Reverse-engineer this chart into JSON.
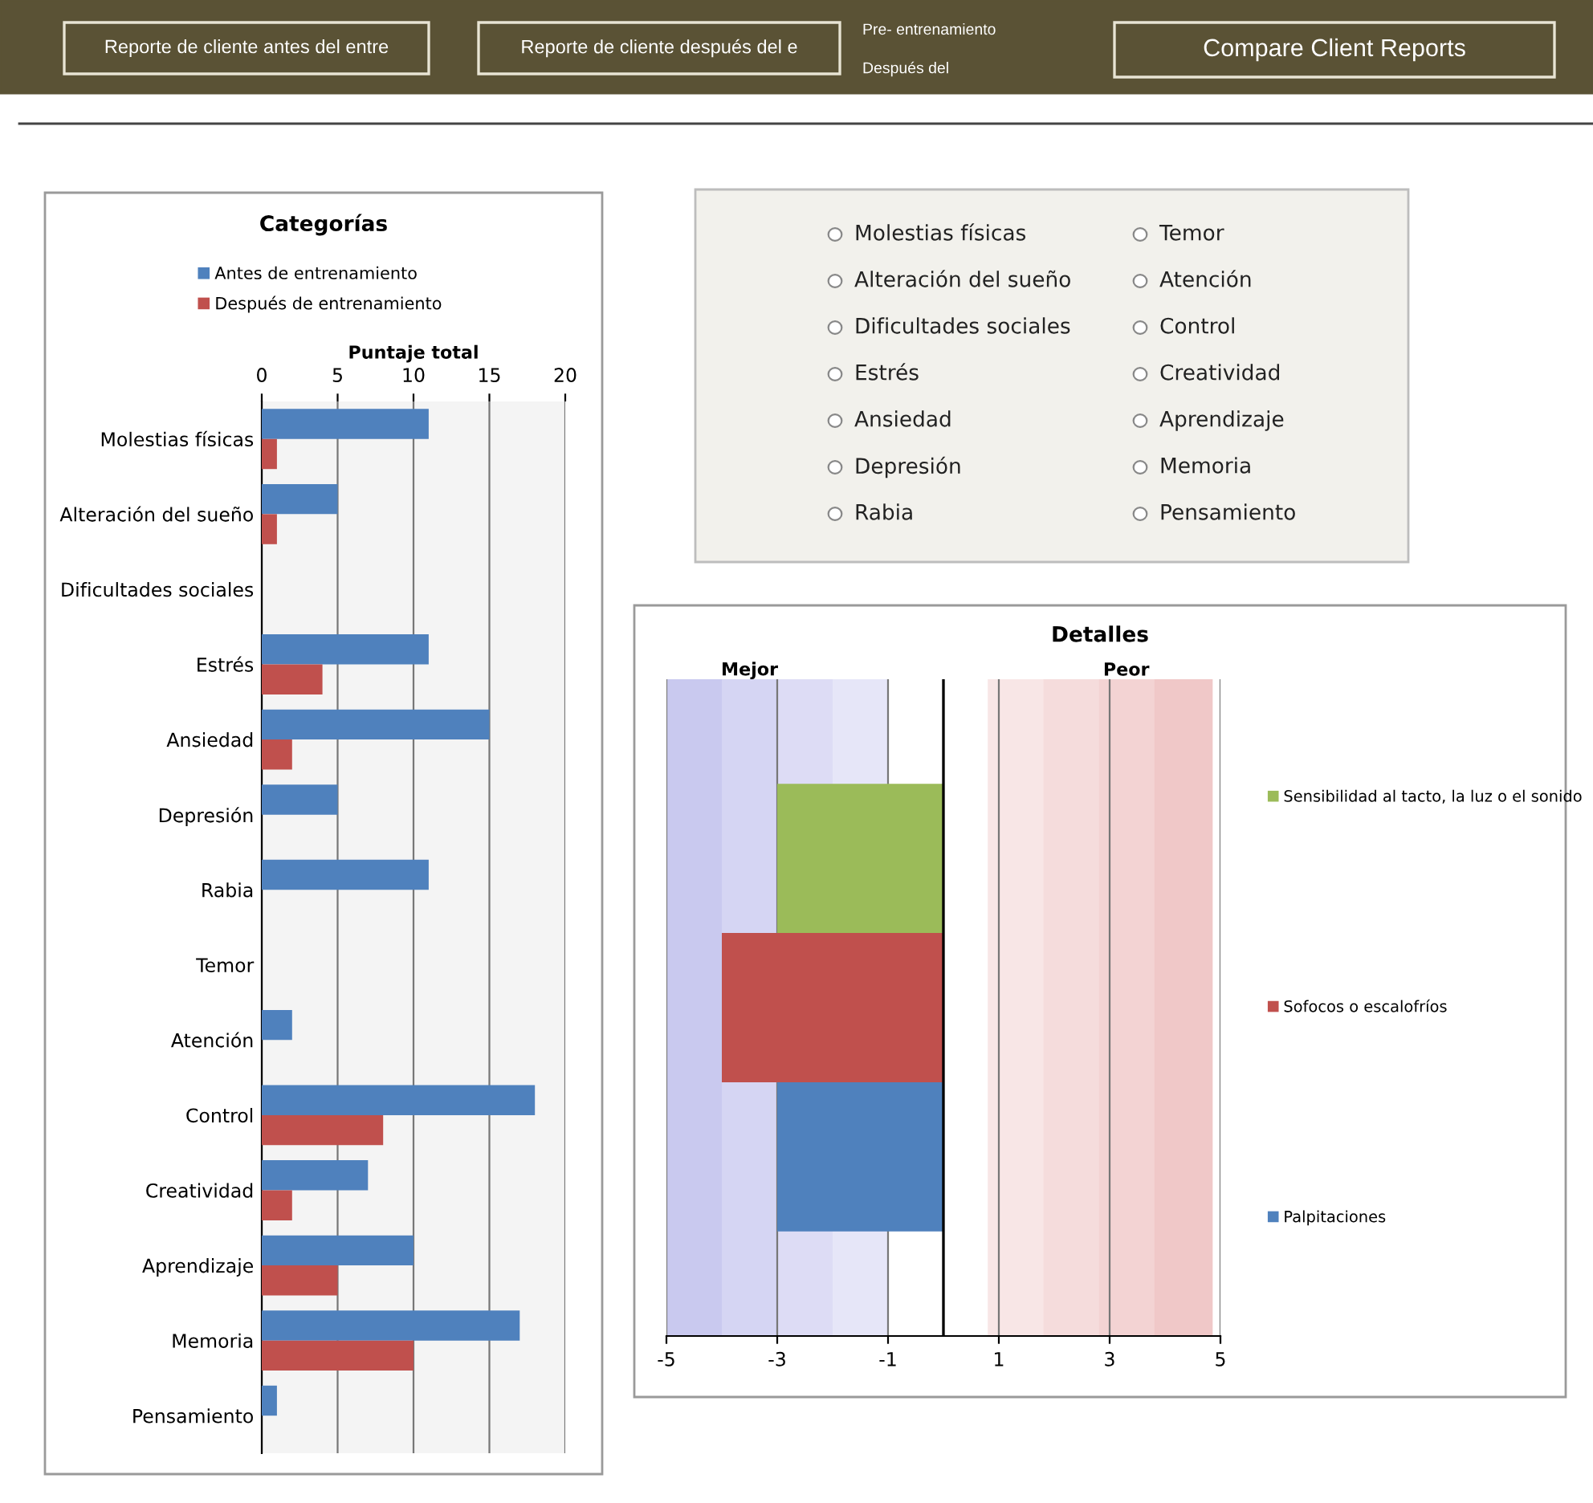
{
  "chart_data": [
    {
      "type": "other",
      "annotations": [
        "Reporte de cliente antes del entre",
        "Reporte de cliente después del e",
        "Pre- entrenamiento",
        "Después del",
        "Compare Client Reports"
      ]
    },
    {
      "type": "bar",
      "orientation": "horizontal",
      "title": "Categorías",
      "xlabel": "Puntaje total",
      "categories": [
        "Molestias físicas",
        "Alteración del sueño",
        "Dificultades sociales",
        "Estrés",
        "Ansiedad",
        "Depresión",
        "Rabia",
        "Temor",
        "Atención",
        "Control",
        "Creatividad",
        "Aprendizaje",
        "Memoria",
        "Pensamiento"
      ],
      "series": [
        {
          "name": "Antes de entrenamiento",
          "color": "#4f81bd",
          "values": [
            11,
            5,
            0,
            11,
            15,
            5,
            11,
            0,
            2,
            18,
            7,
            10,
            17,
            1
          ]
        },
        {
          "name": "Después de entrenamiento",
          "color": "#c0504d",
          "values": [
            1,
            1,
            0,
            4,
            2,
            0,
            0,
            0,
            0,
            8,
            2,
            5,
            10,
            0
          ]
        }
      ],
      "xlim": [
        0,
        20
      ],
      "xticks": [
        0,
        5,
        10,
        15,
        20
      ],
      "grid": "x",
      "legend": "top"
    },
    {
      "type": "other",
      "annotations": [
        "Molestias físicas",
        "Alteración del sueño",
        "Dificultades sociales",
        "Estrés",
        "Ansiedad",
        "Depresión",
        "Rabia",
        "Temor",
        "Atención",
        "Control",
        "Creatividad",
        "Aprendizaje",
        "Memoria",
        "Pensamiento"
      ]
    },
    {
      "type": "bar",
      "orientation": "horizontal",
      "stacked": true,
      "title": "Detalles",
      "categories": [
        null,
        null,
        null
      ],
      "series": [
        {
          "name": "Sensibilidad al tacto, la luz o el sonido",
          "color": "#9bbb59",
          "values": [
            -3,
            null,
            null
          ]
        },
        {
          "name": "Sofocos o escalofríos",
          "color": "#c0504d",
          "values": [
            null,
            -4,
            null
          ]
        },
        {
          "name": "Palpitaciones",
          "color": "#4f81bd",
          "values": [
            null,
            null,
            -3
          ]
        }
      ],
      "xlim": [
        -5,
        5
      ],
      "xticks": [
        -5,
        -3,
        -1,
        1,
        3,
        5
      ],
      "grid": "x",
      "legend": "right",
      "ref_lines": [
        {
          "axis": "x",
          "value": 0,
          "color": "#000000"
        }
      ],
      "bands": [
        {
          "axis": "x",
          "from": -5,
          "to": -4,
          "color": "#c9c9ef"
        },
        {
          "axis": "x",
          "from": -4,
          "to": -3,
          "color": "#d5d5f3",
          "label": "Mejor"
        },
        {
          "axis": "x",
          "from": -3,
          "to": -2,
          "color": "#dddcf5"
        },
        {
          "axis": "x",
          "from": -2,
          "to": -1,
          "color": "#e6e6f8"
        },
        {
          "axis": "x",
          "from": 0.8,
          "to": 1.8,
          "color": "#f8e6e6"
        },
        {
          "axis": "x",
          "from": 1.8,
          "to": 2.8,
          "color": "#f5dcdc"
        },
        {
          "axis": "x",
          "from": 2.8,
          "to": 3.8,
          "color": "#f3d3d3",
          "label": "Peor"
        },
        {
          "axis": "x",
          "from": 3.8,
          "to": 4.86,
          "color": "#f0c8c8"
        }
      ]
    }
  ]
}
